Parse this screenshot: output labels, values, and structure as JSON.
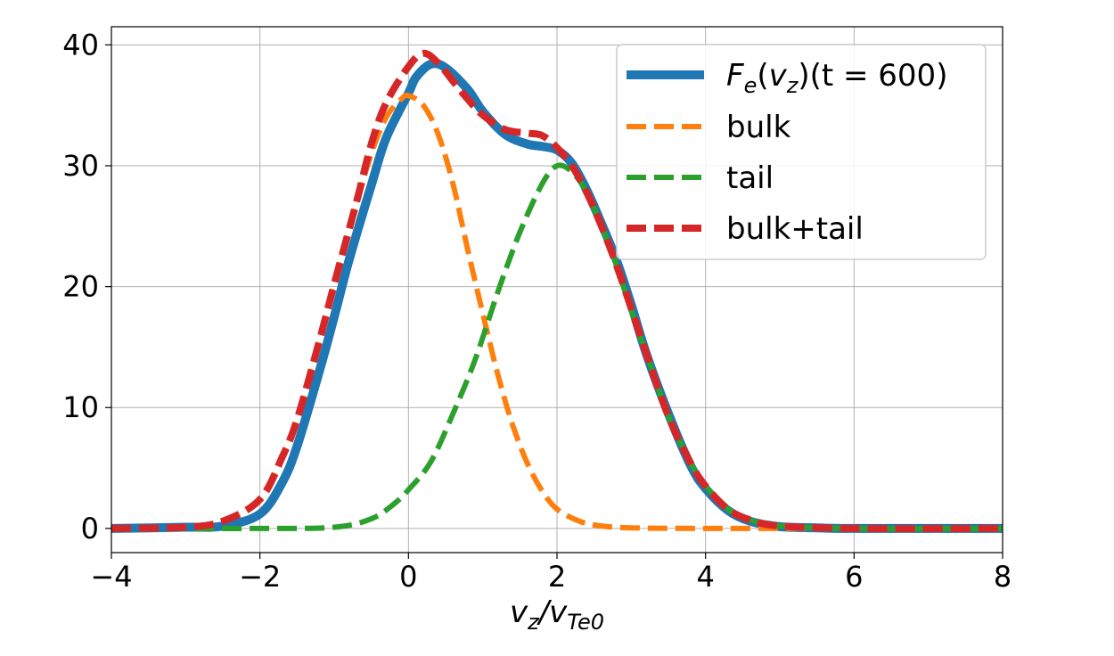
{
  "chart_data": {
    "type": "line",
    "title": "",
    "xlabel": {
      "main": "v",
      "sub1": "z",
      "slash": "/v",
      "sub2": "Te0"
    },
    "ylabel": "",
    "xlim": [
      -4,
      8
    ],
    "ylim": [
      -2,
      41.5
    ],
    "xticks": [
      -4,
      -2,
      0,
      2,
      4,
      6,
      8
    ],
    "yticks": [
      0,
      10,
      20,
      30,
      40
    ],
    "xtick_labels": [
      "−4",
      "−2",
      "0",
      "2",
      "4",
      "6",
      "8"
    ],
    "ytick_labels": [
      "0",
      "10",
      "20",
      "30",
      "40"
    ],
    "grid": true,
    "legend_position": "top-right",
    "series": [
      {
        "name": "F_e(v_z)(t = 600)",
        "legend": {
          "F": "F",
          "e": "e",
          "open": "(",
          "v": "v",
          "z": "z",
          "close": ")(t = 600)"
        },
        "color": "#1f77b4",
        "style": "solid",
        "points": [
          [
            -4,
            0
          ],
          [
            -3,
            0.1
          ],
          [
            -2.5,
            0.2
          ],
          [
            -2,
            1.2
          ],
          [
            -1.7,
            3.8
          ],
          [
            -1.5,
            6.8
          ],
          [
            -1.2,
            13.0
          ],
          [
            -1,
            17.5
          ],
          [
            -0.8,
            22.2
          ],
          [
            -0.5,
            28.4
          ],
          [
            -0.3,
            32.3
          ],
          [
            0,
            36.0
          ],
          [
            0.1,
            37.3
          ],
          [
            0.3,
            38.4
          ],
          [
            0.5,
            38.1
          ],
          [
            0.8,
            36.3
          ],
          [
            1,
            34.5
          ],
          [
            1.3,
            32.6
          ],
          [
            1.6,
            31.8
          ],
          [
            1.8,
            31.6
          ],
          [
            2,
            31.3
          ],
          [
            2.2,
            30.2
          ],
          [
            2.4,
            28.0
          ],
          [
            2.6,
            25.2
          ],
          [
            2.8,
            22.2
          ],
          [
            3,
            18.5
          ],
          [
            3.2,
            14.5
          ],
          [
            3.5,
            9.5
          ],
          [
            3.8,
            5.2
          ],
          [
            4,
            3.3
          ],
          [
            4.3,
            1.5
          ],
          [
            4.6,
            0.6
          ],
          [
            5,
            0.15
          ],
          [
            5.5,
            0.05
          ],
          [
            6,
            0
          ],
          [
            8,
            0
          ]
        ]
      },
      {
        "name": "bulk",
        "color": "#ff7f0e",
        "style": "dashed",
        "points": [
          [
            -4,
            0
          ],
          [
            -3,
            0.1
          ],
          [
            -2.5,
            0.6
          ],
          [
            -2,
            2.5
          ],
          [
            -1.7,
            6.0
          ],
          [
            -1.5,
            9.0
          ],
          [
            -1.2,
            15.5
          ],
          [
            -1,
            20.2
          ],
          [
            -0.7,
            26.8
          ],
          [
            -0.5,
            31.0
          ],
          [
            -0.3,
            34.0
          ],
          [
            -0.1,
            35.5
          ],
          [
            0,
            35.8
          ],
          [
            0.2,
            35.0
          ],
          [
            0.4,
            32.6
          ],
          [
            0.6,
            28.5
          ],
          [
            0.8,
            23.0
          ],
          [
            1,
            17.8
          ],
          [
            1.2,
            12.8
          ],
          [
            1.4,
            8.6
          ],
          [
            1.6,
            5.4
          ],
          [
            1.8,
            3.1
          ],
          [
            2,
            1.6
          ],
          [
            2.3,
            0.6
          ],
          [
            2.6,
            0.2
          ],
          [
            3,
            0.05
          ],
          [
            4,
            0
          ],
          [
            8,
            0
          ]
        ]
      },
      {
        "name": "tail",
        "color": "#2ca02c",
        "style": "dashed",
        "points": [
          [
            -4,
            0
          ],
          [
            -2,
            0
          ],
          [
            -1,
            0.1
          ],
          [
            -0.5,
            0.8
          ],
          [
            -0.2,
            2.0
          ],
          [
            0,
            3.2
          ],
          [
            0.3,
            5.5
          ],
          [
            0.6,
            9.5
          ],
          [
            0.9,
            14.0
          ],
          [
            1.2,
            19.5
          ],
          [
            1.5,
            24.5
          ],
          [
            1.8,
            28.5
          ],
          [
            2,
            30.0
          ],
          [
            2.2,
            29.5
          ],
          [
            2.4,
            27.8
          ],
          [
            2.6,
            25.0
          ],
          [
            2.8,
            21.8
          ],
          [
            3,
            18.0
          ],
          [
            3.2,
            14.5
          ],
          [
            3.5,
            9.3
          ],
          [
            3.8,
            5.4
          ],
          [
            4,
            3.5
          ],
          [
            4.3,
            1.6
          ],
          [
            4.6,
            0.7
          ],
          [
            5,
            0.2
          ],
          [
            6,
            0
          ],
          [
            8,
            0
          ]
        ]
      },
      {
        "name": "bulk+tail",
        "color": "#d62728",
        "style": "dashed",
        "points": [
          [
            -4,
            0
          ],
          [
            -3,
            0.1
          ],
          [
            -2.5,
            0.6
          ],
          [
            -2,
            2.4
          ],
          [
            -1.7,
            5.9
          ],
          [
            -1.5,
            9.0
          ],
          [
            -1.2,
            15.5
          ],
          [
            -1,
            20.2
          ],
          [
            -0.7,
            27.0
          ],
          [
            -0.5,
            31.8
          ],
          [
            -0.3,
            35.2
          ],
          [
            0,
            38.2
          ],
          [
            0.2,
            39.3
          ],
          [
            0.4,
            38.5
          ],
          [
            0.6,
            37.0
          ],
          [
            0.8,
            35.5
          ],
          [
            1,
            34.2
          ],
          [
            1.3,
            33.0
          ],
          [
            1.6,
            32.7
          ],
          [
            1.8,
            32.5
          ],
          [
            2,
            31.5
          ],
          [
            2.2,
            30.0
          ],
          [
            2.4,
            27.8
          ],
          [
            2.6,
            25.0
          ],
          [
            2.8,
            21.8
          ],
          [
            3,
            18.2
          ],
          [
            3.2,
            14.5
          ],
          [
            3.5,
            9.3
          ],
          [
            3.8,
            5.4
          ],
          [
            4,
            3.5
          ],
          [
            4.3,
            1.6
          ],
          [
            4.6,
            0.7
          ],
          [
            5,
            0.2
          ],
          [
            6,
            0
          ],
          [
            8,
            0
          ]
        ]
      }
    ]
  }
}
